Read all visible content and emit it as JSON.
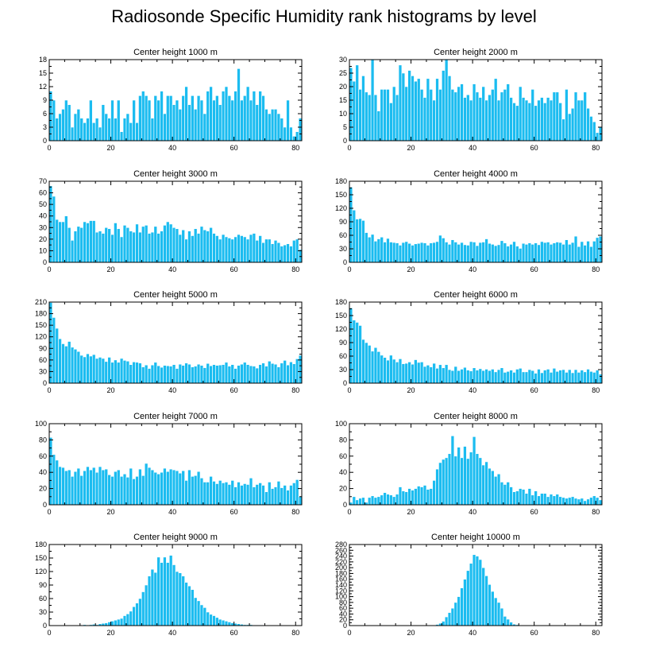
{
  "title": "Radiosonde Specific Humidity rank histograms by level",
  "colors": {
    "bar": "#1bbcf0",
    "bar_edge": "#ffffff",
    "axis": "#000000"
  },
  "chart_data": [
    {
      "type": "bar",
      "title": "Center height 1000 m",
      "x_start": 0,
      "xlim": [
        0,
        82
      ],
      "x_ticks": [
        0,
        20,
        40,
        60,
        80
      ],
      "ylim": [
        0,
        18
      ],
      "y_ticks": [
        0,
        3,
        6,
        9,
        12,
        15,
        18
      ],
      "values": [
        11,
        9,
        5,
        6,
        7,
        9,
        8,
        3,
        6,
        7,
        5,
        4,
        5,
        9,
        4,
        5,
        3,
        8,
        6,
        5,
        9,
        5,
        9,
        2,
        5,
        6,
        4,
        9,
        4,
        10,
        11,
        10,
        9,
        5,
        10,
        9,
        11,
        6,
        10,
        10,
        8,
        9,
        7,
        10,
        12,
        8,
        10,
        7,
        10,
        9,
        6,
        11,
        12,
        9,
        10,
        8,
        11,
        12,
        10,
        9,
        11,
        16,
        9,
        10,
        12,
        9,
        11,
        8,
        11,
        10,
        7,
        6,
        7,
        7,
        6,
        5,
        3,
        9,
        3,
        1,
        2,
        5
      ]
    },
    {
      "type": "bar",
      "title": "Center height 2000 m",
      "x_start": 0,
      "xlim": [
        0,
        82
      ],
      "x_ticks": [
        0,
        20,
        40,
        60,
        80
      ],
      "ylim": [
        0,
        30
      ],
      "y_ticks": [
        0,
        5,
        10,
        15,
        20,
        25,
        30
      ],
      "values": [
        27,
        22,
        28,
        19,
        24,
        18,
        17,
        30,
        17,
        11,
        19,
        19,
        19,
        14,
        20,
        17,
        28,
        25,
        20,
        26,
        24,
        22,
        23,
        19,
        16,
        23,
        19,
        15,
        23,
        19,
        26,
        30,
        24,
        19,
        18,
        20,
        21,
        16,
        17,
        15,
        21,
        18,
        16,
        20,
        15,
        17,
        19,
        23,
        15,
        18,
        19,
        21,
        16,
        14,
        13,
        20,
        16,
        15,
        14,
        19,
        13,
        15,
        16,
        14,
        16,
        15,
        18,
        18,
        14,
        8,
        19,
        10,
        12,
        18,
        15,
        15,
        18,
        12,
        9,
        7,
        3,
        5
      ]
    },
    {
      "type": "bar",
      "title": "Center height 3000 m",
      "x_start": 0,
      "xlim": [
        0,
        82
      ],
      "x_ticks": [
        0,
        20,
        40,
        60,
        80
      ],
      "ylim": [
        0,
        70
      ],
      "y_ticks": [
        0,
        10,
        20,
        30,
        40,
        50,
        60,
        70
      ],
      "values": [
        66,
        57,
        37,
        35,
        35,
        40,
        30,
        19,
        27,
        31,
        30,
        35,
        34,
        36,
        36,
        26,
        27,
        25,
        30,
        29,
        24,
        34,
        29,
        22,
        32,
        30,
        27,
        26,
        33,
        26,
        31,
        32,
        25,
        26,
        31,
        25,
        27,
        32,
        35,
        33,
        30,
        29,
        24,
        28,
        20,
        27,
        23,
        29,
        25,
        31,
        28,
        27,
        30,
        25,
        23,
        20,
        24,
        22,
        21,
        20,
        22,
        24,
        23,
        22,
        20,
        24,
        25,
        19,
        23,
        17,
        20,
        20,
        16,
        19,
        17,
        14,
        15,
        16,
        14,
        19,
        20,
        11
      ]
    },
    {
      "type": "bar",
      "title": "Center height 4000 m",
      "x_start": 0,
      "xlim": [
        0,
        82
      ],
      "x_ticks": [
        0,
        20,
        40,
        60,
        80
      ],
      "ylim": [
        0,
        180
      ],
      "y_ticks": [
        0,
        30,
        60,
        90,
        120,
        150,
        180
      ],
      "values": [
        167,
        116,
        96,
        97,
        93,
        66,
        56,
        62,
        47,
        52,
        56,
        45,
        53,
        45,
        44,
        43,
        38,
        44,
        46,
        42,
        38,
        41,
        42,
        44,
        43,
        38,
        43,
        44,
        46,
        60,
        54,
        45,
        40,
        50,
        45,
        40,
        44,
        39,
        38,
        46,
        45,
        37,
        44,
        45,
        52,
        42,
        40,
        37,
        39,
        48,
        43,
        36,
        40,
        46,
        36,
        31,
        42,
        40,
        43,
        40,
        43,
        39,
        46,
        44,
        45,
        40,
        43,
        45,
        44,
        40,
        50,
        40,
        44,
        58,
        35,
        46,
        38,
        47,
        35,
        47,
        55,
        58
      ]
    },
    {
      "type": "bar",
      "title": "Center height 5000 m",
      "x_start": 0,
      "xlim": [
        0,
        82
      ],
      "x_ticks": [
        0,
        20,
        40,
        60,
        80
      ],
      "ylim": [
        0,
        210
      ],
      "y_ticks": [
        0,
        30,
        60,
        90,
        120,
        150,
        180,
        210
      ],
      "values": [
        209,
        170,
        142,
        115,
        102,
        96,
        108,
        93,
        88,
        82,
        72,
        68,
        76,
        70,
        74,
        64,
        67,
        64,
        56,
        67,
        54,
        60,
        54,
        64,
        59,
        57,
        48,
        55,
        54,
        52,
        42,
        47,
        38,
        47,
        54,
        45,
        41,
        46,
        45,
        44,
        48,
        38,
        49,
        46,
        52,
        49,
        42,
        44,
        49,
        46,
        40,
        51,
        45,
        48,
        46,
        47,
        48,
        54,
        44,
        48,
        38,
        46,
        49,
        54,
        48,
        45,
        44,
        39,
        48,
        52,
        44,
        57,
        51,
        49,
        42,
        52,
        59,
        47,
        55,
        50,
        63,
        72
      ]
    },
    {
      "type": "bar",
      "title": "Center height 6000 m",
      "x_start": 0,
      "xlim": [
        0,
        82
      ],
      "x_ticks": [
        0,
        20,
        40,
        60,
        80
      ],
      "ylim": [
        0,
        180
      ],
      "y_ticks": [
        0,
        30,
        60,
        90,
        120,
        150,
        180
      ],
      "values": [
        167,
        140,
        135,
        128,
        97,
        90,
        84,
        71,
        79,
        70,
        62,
        57,
        51,
        62,
        53,
        47,
        54,
        43,
        44,
        47,
        42,
        52,
        46,
        47,
        37,
        40,
        36,
        44,
        33,
        41,
        34,
        41,
        30,
        28,
        37,
        28,
        31,
        35,
        29,
        27,
        34,
        29,
        32,
        28,
        31,
        28,
        31,
        25,
        30,
        34,
        24,
        26,
        29,
        24,
        31,
        33,
        25,
        25,
        30,
        28,
        22,
        31,
        23,
        29,
        31,
        24,
        33,
        26,
        29,
        30,
        24,
        30,
        23,
        30,
        24,
        29,
        25,
        31,
        26,
        24,
        29,
        20
      ]
    },
    {
      "type": "bar",
      "title": "Center height 7000 m",
      "x_start": 0,
      "xlim": [
        0,
        82
      ],
      "x_ticks": [
        0,
        20,
        40,
        60,
        80
      ],
      "ylim": [
        0,
        100
      ],
      "y_ticks": [
        0,
        20,
        40,
        60,
        80,
        100
      ],
      "values": [
        83,
        62,
        55,
        47,
        46,
        42,
        43,
        35,
        41,
        45,
        36,
        42,
        47,
        43,
        46,
        40,
        47,
        43,
        44,
        37,
        35,
        41,
        43,
        35,
        38,
        34,
        45,
        32,
        35,
        44,
        36,
        51,
        46,
        43,
        40,
        38,
        40,
        45,
        41,
        44,
        43,
        42,
        39,
        42,
        30,
        43,
        35,
        36,
        41,
        33,
        28,
        28,
        35,
        29,
        26,
        30,
        27,
        28,
        25,
        30,
        22,
        28,
        24,
        26,
        25,
        33,
        22,
        25,
        27,
        24,
        16,
        28,
        20,
        22,
        29,
        21,
        24,
        18,
        24,
        27,
        31,
        10
      ]
    },
    {
      "type": "bar",
      "title": "Center height 8000 m",
      "x_start": 0,
      "xlim": [
        0,
        82
      ],
      "x_ticks": [
        0,
        20,
        40,
        60,
        80
      ],
      "ylim": [
        0,
        100
      ],
      "y_ticks": [
        0,
        20,
        40,
        60,
        80,
        100
      ],
      "values": [
        3,
        10,
        6,
        8,
        9,
        3,
        9,
        11,
        9,
        10,
        12,
        15,
        13,
        12,
        10,
        13,
        22,
        17,
        16,
        20,
        18,
        20,
        23,
        22,
        24,
        19,
        20,
        30,
        44,
        52,
        56,
        58,
        63,
        85,
        60,
        71,
        58,
        72,
        57,
        65,
        84,
        63,
        58,
        49,
        53,
        45,
        42,
        35,
        38,
        28,
        25,
        28,
        22,
        16,
        17,
        20,
        19,
        14,
        20,
        12,
        17,
        11,
        14,
        14,
        10,
        13,
        11,
        13,
        10,
        9,
        8,
        9,
        10,
        8,
        7,
        8,
        5,
        7,
        9,
        11,
        9,
        6
      ]
    },
    {
      "type": "bar",
      "title": "Center height 9000 m",
      "x_start": 0,
      "xlim": [
        0,
        82
      ],
      "x_ticks": [
        0,
        20,
        40,
        60,
        80
      ],
      "ylim": [
        0,
        180
      ],
      "y_ticks": [
        0,
        30,
        60,
        90,
        120,
        150,
        180
      ],
      "values": [
        0,
        0,
        0,
        0,
        0,
        0,
        0,
        0,
        0,
        0,
        1,
        2,
        1,
        2,
        3,
        2,
        4,
        5,
        6,
        8,
        10,
        12,
        14,
        16,
        22,
        26,
        32,
        42,
        50,
        60,
        75,
        90,
        110,
        125,
        118,
        152,
        140,
        152,
        140,
        156,
        135,
        120,
        117,
        110,
        96,
        88,
        80,
        62,
        55,
        46,
        40,
        30,
        25,
        22,
        18,
        14,
        12,
        10,
        8,
        6,
        5,
        4,
        3,
        2,
        2,
        2,
        1,
        1,
        1,
        1,
        0,
        0,
        0,
        0,
        0,
        0,
        0,
        0,
        0,
        0,
        0,
        0
      ]
    },
    {
      "type": "bar",
      "title": "Center height 10000 m",
      "x_start": 0,
      "xlim": [
        0,
        82
      ],
      "x_ticks": [
        0,
        20,
        40,
        60,
        80
      ],
      "ylim": [
        0,
        280
      ],
      "y_ticks": [
        0,
        20,
        40,
        60,
        80,
        100,
        120,
        140,
        160,
        180,
        200,
        220,
        240,
        260,
        280
      ],
      "values": [
        0,
        0,
        0,
        0,
        0,
        0,
        0,
        0,
        0,
        0,
        0,
        0,
        0,
        0,
        0,
        0,
        0,
        0,
        0,
        0,
        0,
        0,
        0,
        0,
        0,
        0,
        1,
        2,
        4,
        8,
        15,
        30,
        45,
        60,
        80,
        100,
        130,
        160,
        190,
        215,
        245,
        240,
        228,
        200,
        172,
        142,
        118,
        96,
        80,
        60,
        32,
        22,
        12,
        5,
        3,
        2,
        1,
        1,
        0,
        0,
        0,
        0,
        0,
        0,
        0,
        0,
        0,
        0,
        0,
        0,
        0,
        0,
        0,
        0,
        0,
        0,
        0,
        0,
        0,
        0,
        0,
        0
      ]
    }
  ]
}
